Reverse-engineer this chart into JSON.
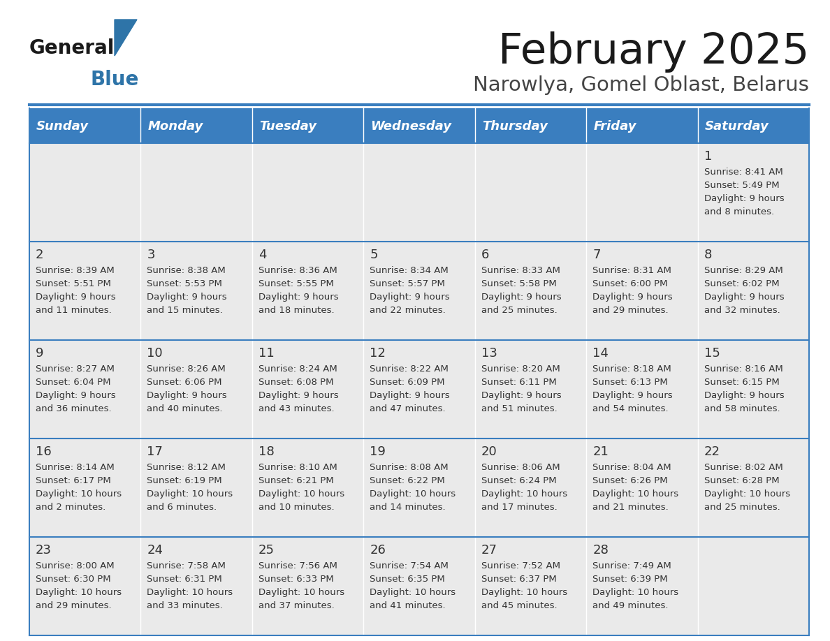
{
  "title": "February 2025",
  "subtitle": "Narowlya, Gomel Oblast, Belarus",
  "header_bg": "#3a7ebf",
  "header_text": "#FFFFFF",
  "day_names": [
    "Sunday",
    "Monday",
    "Tuesday",
    "Wednesday",
    "Thursday",
    "Friday",
    "Saturday"
  ],
  "cell_bg": "#EAEAEA",
  "cell_border_color": "#3a7ebf",
  "title_color": "#1a1a1a",
  "subtitle_color": "#444444",
  "day_num_color": "#333333",
  "cell_text_color": "#333333",
  "calendar": [
    [
      null,
      null,
      null,
      null,
      null,
      null,
      {
        "day": 1,
        "sunrise": "8:41 AM",
        "sunset": "5:49 PM",
        "daylight": "9 hours and 8 minutes."
      }
    ],
    [
      {
        "day": 2,
        "sunrise": "8:39 AM",
        "sunset": "5:51 PM",
        "daylight": "9 hours and 11 minutes."
      },
      {
        "day": 3,
        "sunrise": "8:38 AM",
        "sunset": "5:53 PM",
        "daylight": "9 hours and 15 minutes."
      },
      {
        "day": 4,
        "sunrise": "8:36 AM",
        "sunset": "5:55 PM",
        "daylight": "9 hours and 18 minutes."
      },
      {
        "day": 5,
        "sunrise": "8:34 AM",
        "sunset": "5:57 PM",
        "daylight": "9 hours and 22 minutes."
      },
      {
        "day": 6,
        "sunrise": "8:33 AM",
        "sunset": "5:58 PM",
        "daylight": "9 hours and 25 minutes."
      },
      {
        "day": 7,
        "sunrise": "8:31 AM",
        "sunset": "6:00 PM",
        "daylight": "9 hours and 29 minutes."
      },
      {
        "day": 8,
        "sunrise": "8:29 AM",
        "sunset": "6:02 PM",
        "daylight": "9 hours and 32 minutes."
      }
    ],
    [
      {
        "day": 9,
        "sunrise": "8:27 AM",
        "sunset": "6:04 PM",
        "daylight": "9 hours and 36 minutes."
      },
      {
        "day": 10,
        "sunrise": "8:26 AM",
        "sunset": "6:06 PM",
        "daylight": "9 hours and 40 minutes."
      },
      {
        "day": 11,
        "sunrise": "8:24 AM",
        "sunset": "6:08 PM",
        "daylight": "9 hours and 43 minutes."
      },
      {
        "day": 12,
        "sunrise": "8:22 AM",
        "sunset": "6:09 PM",
        "daylight": "9 hours and 47 minutes."
      },
      {
        "day": 13,
        "sunrise": "8:20 AM",
        "sunset": "6:11 PM",
        "daylight": "9 hours and 51 minutes."
      },
      {
        "day": 14,
        "sunrise": "8:18 AM",
        "sunset": "6:13 PM",
        "daylight": "9 hours and 54 minutes."
      },
      {
        "day": 15,
        "sunrise": "8:16 AM",
        "sunset": "6:15 PM",
        "daylight": "9 hours and 58 minutes."
      }
    ],
    [
      {
        "day": 16,
        "sunrise": "8:14 AM",
        "sunset": "6:17 PM",
        "daylight": "10 hours and 2 minutes."
      },
      {
        "day": 17,
        "sunrise": "8:12 AM",
        "sunset": "6:19 PM",
        "daylight": "10 hours and 6 minutes."
      },
      {
        "day": 18,
        "sunrise": "8:10 AM",
        "sunset": "6:21 PM",
        "daylight": "10 hours and 10 minutes."
      },
      {
        "day": 19,
        "sunrise": "8:08 AM",
        "sunset": "6:22 PM",
        "daylight": "10 hours and 14 minutes."
      },
      {
        "day": 20,
        "sunrise": "8:06 AM",
        "sunset": "6:24 PM",
        "daylight": "10 hours and 17 minutes."
      },
      {
        "day": 21,
        "sunrise": "8:04 AM",
        "sunset": "6:26 PM",
        "daylight": "10 hours and 21 minutes."
      },
      {
        "day": 22,
        "sunrise": "8:02 AM",
        "sunset": "6:28 PM",
        "daylight": "10 hours and 25 minutes."
      }
    ],
    [
      {
        "day": 23,
        "sunrise": "8:00 AM",
        "sunset": "6:30 PM",
        "daylight": "10 hours and 29 minutes."
      },
      {
        "day": 24,
        "sunrise": "7:58 AM",
        "sunset": "6:31 PM",
        "daylight": "10 hours and 33 minutes."
      },
      {
        "day": 25,
        "sunrise": "7:56 AM",
        "sunset": "6:33 PM",
        "daylight": "10 hours and 37 minutes."
      },
      {
        "day": 26,
        "sunrise": "7:54 AM",
        "sunset": "6:35 PM",
        "daylight": "10 hours and 41 minutes."
      },
      {
        "day": 27,
        "sunrise": "7:52 AM",
        "sunset": "6:37 PM",
        "daylight": "10 hours and 45 minutes."
      },
      {
        "day": 28,
        "sunrise": "7:49 AM",
        "sunset": "6:39 PM",
        "daylight": "10 hours and 49 minutes."
      },
      null
    ]
  ],
  "logo_color_general": "#1a1a1a",
  "logo_color_blue": "#2E74A8",
  "logo_triangle_color": "#2E74A8",
  "figsize": [
    11.88,
    9.18
  ],
  "dpi": 100
}
